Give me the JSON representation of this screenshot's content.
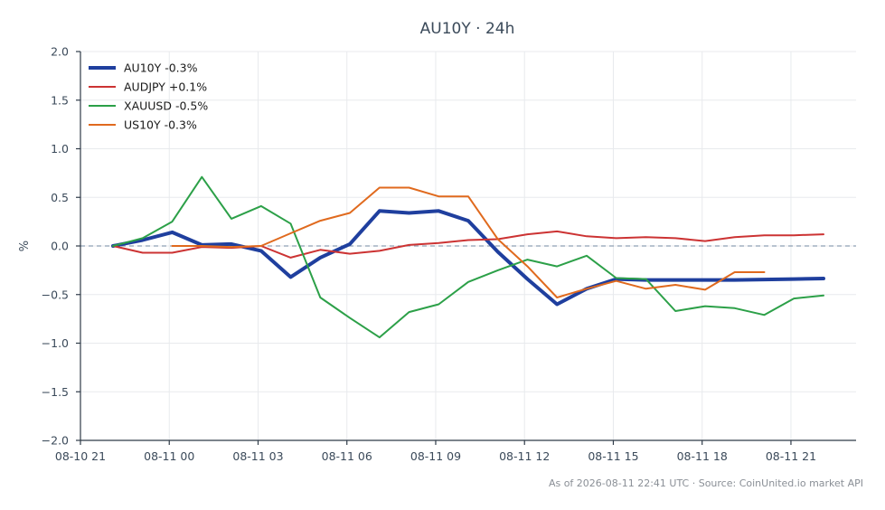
{
  "chart_data": {
    "type": "line",
    "title": "AU10Y · 24h",
    "xlabel": "",
    "ylabel": "%",
    "x_tick_labels": [
      "08-10 21",
      "08-11 00",
      "08-11 03",
      "08-11 06",
      "08-11 09",
      "08-11 12",
      "08-11 15",
      "08-11 18",
      "08-11 21"
    ],
    "x_tick_hours": [
      0,
      3,
      6,
      9,
      12,
      15,
      18,
      21,
      24
    ],
    "x_unit": "hours after 08-10 21:00",
    "xlim": [
      0,
      26.2
    ],
    "ylim": [
      -2.0,
      2.0
    ],
    "y_ticks": [
      2.0,
      1.5,
      1.0,
      0.5,
      0.0,
      -0.5,
      -1.0,
      -1.5,
      -2.0
    ],
    "y_tick_labels": [
      "2.0",
      "1.5",
      "1.0",
      "0.5",
      "0.0",
      "−0.5",
      "−1.0",
      "−1.5",
      "−2.0"
    ],
    "grid": true,
    "zero_line": true,
    "legend_position": "top-left",
    "series": [
      {
        "name": "AU10Y -0.3%",
        "color": "#1f3f9e",
        "width": 4,
        "x": [
          1.1,
          2.1,
          3.1,
          4.1,
          5.1,
          6.1,
          7.1,
          8.1,
          9.1,
          10.1,
          11.1,
          12.1,
          13.1,
          14.1,
          15.1,
          16.1,
          17.1,
          18.1,
          19.1,
          20.1,
          21.1,
          22.1,
          23.1,
          24.1,
          25.1
        ],
        "values": [
          0.0,
          0.06,
          0.14,
          0.01,
          0.02,
          -0.05,
          -0.32,
          -0.12,
          0.02,
          0.36,
          0.34,
          0.36,
          0.26,
          -0.06,
          -0.34,
          -0.6,
          -0.44,
          -0.34,
          -0.35,
          -0.35,
          -0.35,
          -0.35,
          -0.345,
          -0.34,
          -0.335
        ]
      },
      {
        "name": "AUDJPY +0.1%",
        "color": "#cc3333",
        "width": 2,
        "x": [
          1.1,
          2.1,
          3.1,
          4.1,
          5.1,
          6.1,
          7.1,
          8.1,
          9.1,
          10.1,
          11.1,
          12.1,
          13.1,
          14.1,
          15.1,
          16.1,
          17.1,
          18.1,
          19.1,
          20.1,
          21.1,
          22.1,
          23.1,
          24.1,
          25.1
        ],
        "values": [
          0.0,
          -0.07,
          -0.07,
          -0.01,
          -0.02,
          0.0,
          -0.12,
          -0.04,
          -0.08,
          -0.05,
          0.01,
          0.03,
          0.06,
          0.07,
          0.12,
          0.15,
          0.1,
          0.08,
          0.09,
          0.08,
          0.05,
          0.09,
          0.11,
          0.11,
          0.12
        ]
      },
      {
        "name": "XAUUSD -0.5%",
        "color": "#2ca048",
        "width": 2,
        "x": [
          1.1,
          2.1,
          3.1,
          4.1,
          5.1,
          6.1,
          7.1,
          8.1,
          9.1,
          10.1,
          11.1,
          12.1,
          13.1,
          14.1,
          15.1,
          16.1,
          17.1,
          18.1,
          19.1,
          20.1,
          21.1,
          22.1,
          23.1,
          24.1,
          25.1
        ],
        "values": [
          0.0,
          0.08,
          0.25,
          0.71,
          0.28,
          0.41,
          0.23,
          -0.53,
          -0.74,
          -0.94,
          -0.68,
          -0.6,
          -0.37,
          -0.25,
          -0.14,
          -0.21,
          -0.1,
          -0.33,
          -0.34,
          -0.67,
          -0.62,
          -0.64,
          -0.71,
          -0.54,
          -0.51
        ]
      },
      {
        "name": "US10Y -0.3%",
        "color": "#e06a1e",
        "width": 2,
        "x": [
          3.1,
          4.1,
          5.1,
          6.1,
          7.1,
          8.1,
          9.1,
          10.1,
          11.1,
          12.1,
          13.1,
          14.1,
          15.1,
          16.1,
          17.1,
          18.1,
          19.1,
          20.1,
          21.1,
          22.1,
          23.1
        ],
        "values": [
          0.0,
          0.0,
          -0.01,
          0.0,
          0.13,
          0.26,
          0.34,
          0.6,
          0.6,
          0.51,
          0.51,
          0.07,
          -0.21,
          -0.53,
          -0.44,
          -0.36,
          -0.44,
          -0.4,
          -0.45,
          -0.27,
          -0.27
        ]
      }
    ]
  },
  "footer": {
    "text": "As of 2026-08-11 22:41 UTC · Source: CoinUnited.io market API"
  }
}
